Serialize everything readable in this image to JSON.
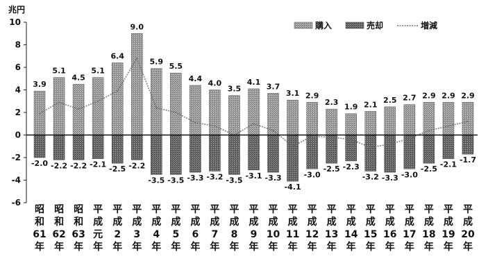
{
  "chart_data": {
    "type": "bar",
    "unit": "兆円",
    "ylim": [
      -6,
      10
    ],
    "yticks": [
      10,
      8,
      6,
      4,
      2,
      0,
      -2,
      -4,
      -6
    ],
    "categories": [
      [
        "昭",
        "和",
        "61",
        "年"
      ],
      [
        "昭",
        "和",
        "62",
        "年"
      ],
      [
        "昭",
        "和",
        "63",
        "年"
      ],
      [
        "平",
        "成",
        "元",
        "年"
      ],
      [
        "平",
        "成",
        "2",
        "年"
      ],
      [
        "平",
        "成",
        "3",
        "年"
      ],
      [
        "平",
        "成",
        "4",
        "年"
      ],
      [
        "平",
        "成",
        "5",
        "年"
      ],
      [
        "平",
        "成",
        "6",
        "年"
      ],
      [
        "平",
        "成",
        "7",
        "年"
      ],
      [
        "平",
        "成",
        "8",
        "年"
      ],
      [
        "平",
        "成",
        "9",
        "年"
      ],
      [
        "平",
        "成",
        "10",
        "年"
      ],
      [
        "平",
        "成",
        "11",
        "年"
      ],
      [
        "平",
        "成",
        "12",
        "年"
      ],
      [
        "平",
        "成",
        "13",
        "年"
      ],
      [
        "平",
        "成",
        "14",
        "年"
      ],
      [
        "平",
        "成",
        "15",
        "年"
      ],
      [
        "平",
        "成",
        "16",
        "年"
      ],
      [
        "平",
        "成",
        "17",
        "年"
      ],
      [
        "平",
        "成",
        "18",
        "年"
      ],
      [
        "平",
        "成",
        "19",
        "年"
      ],
      [
        "平",
        "成",
        "20",
        "年"
      ]
    ],
    "series": [
      {
        "name": "購入",
        "values": [
          3.9,
          5.1,
          4.5,
          5.1,
          6.4,
          9.0,
          5.9,
          5.5,
          4.4,
          4.0,
          3.5,
          4.1,
          3.7,
          3.1,
          2.9,
          2.3,
          1.9,
          2.1,
          2.5,
          2.7,
          2.9,
          2.9,
          2.9
        ],
        "labels": [
          "3.9",
          "5.1",
          "4.5",
          "5.1",
          "6.4",
          "9.0",
          "5.9",
          "5.5",
          "4.4",
          "4.0",
          "3.5",
          "4.1",
          "3.7",
          "3.1",
          "2.9",
          "2.3",
          "1.9",
          "2.1",
          "2.5",
          "2.7",
          "2.9",
          "2.9",
          "2.9"
        ]
      },
      {
        "name": "売却",
        "values": [
          -2.0,
          -2.2,
          -2.2,
          -2.1,
          -2.5,
          -2.2,
          -3.5,
          -3.5,
          -3.3,
          -3.2,
          -3.5,
          -3.1,
          -3.3,
          -4.1,
          -3.0,
          -2.5,
          -2.3,
          -3.2,
          -3.3,
          -3.0,
          -2.5,
          -2.1,
          -1.7
        ],
        "labels": [
          "-2.0",
          "-2.2",
          "-2.2",
          "-2.1",
          "-2.5",
          "-2.2",
          "-3.5",
          "-3.5",
          "-3.3",
          "-3.2",
          "-3.5",
          "-3.1",
          "-3.3",
          "-4.1",
          "-3.0",
          "-2.5",
          "-2.3",
          "-3.2",
          "-3.3",
          "-3.0",
          "-2.5",
          "-2.1",
          "-1.7"
        ]
      },
      {
        "name": "増減",
        "type": "line",
        "values": [
          1.9,
          2.9,
          2.3,
          3.0,
          3.9,
          6.8,
          2.4,
          2.0,
          1.1,
          0.8,
          0.0,
          1.0,
          0.4,
          -1.0,
          -0.1,
          -0.2,
          -0.4,
          -1.1,
          -0.8,
          -0.3,
          0.4,
          0.8,
          1.2
        ]
      }
    ],
    "colors": {
      "purchase": "#8f8f8f",
      "sale": "#5e5e5e",
      "net": "#6a6a6a"
    }
  }
}
